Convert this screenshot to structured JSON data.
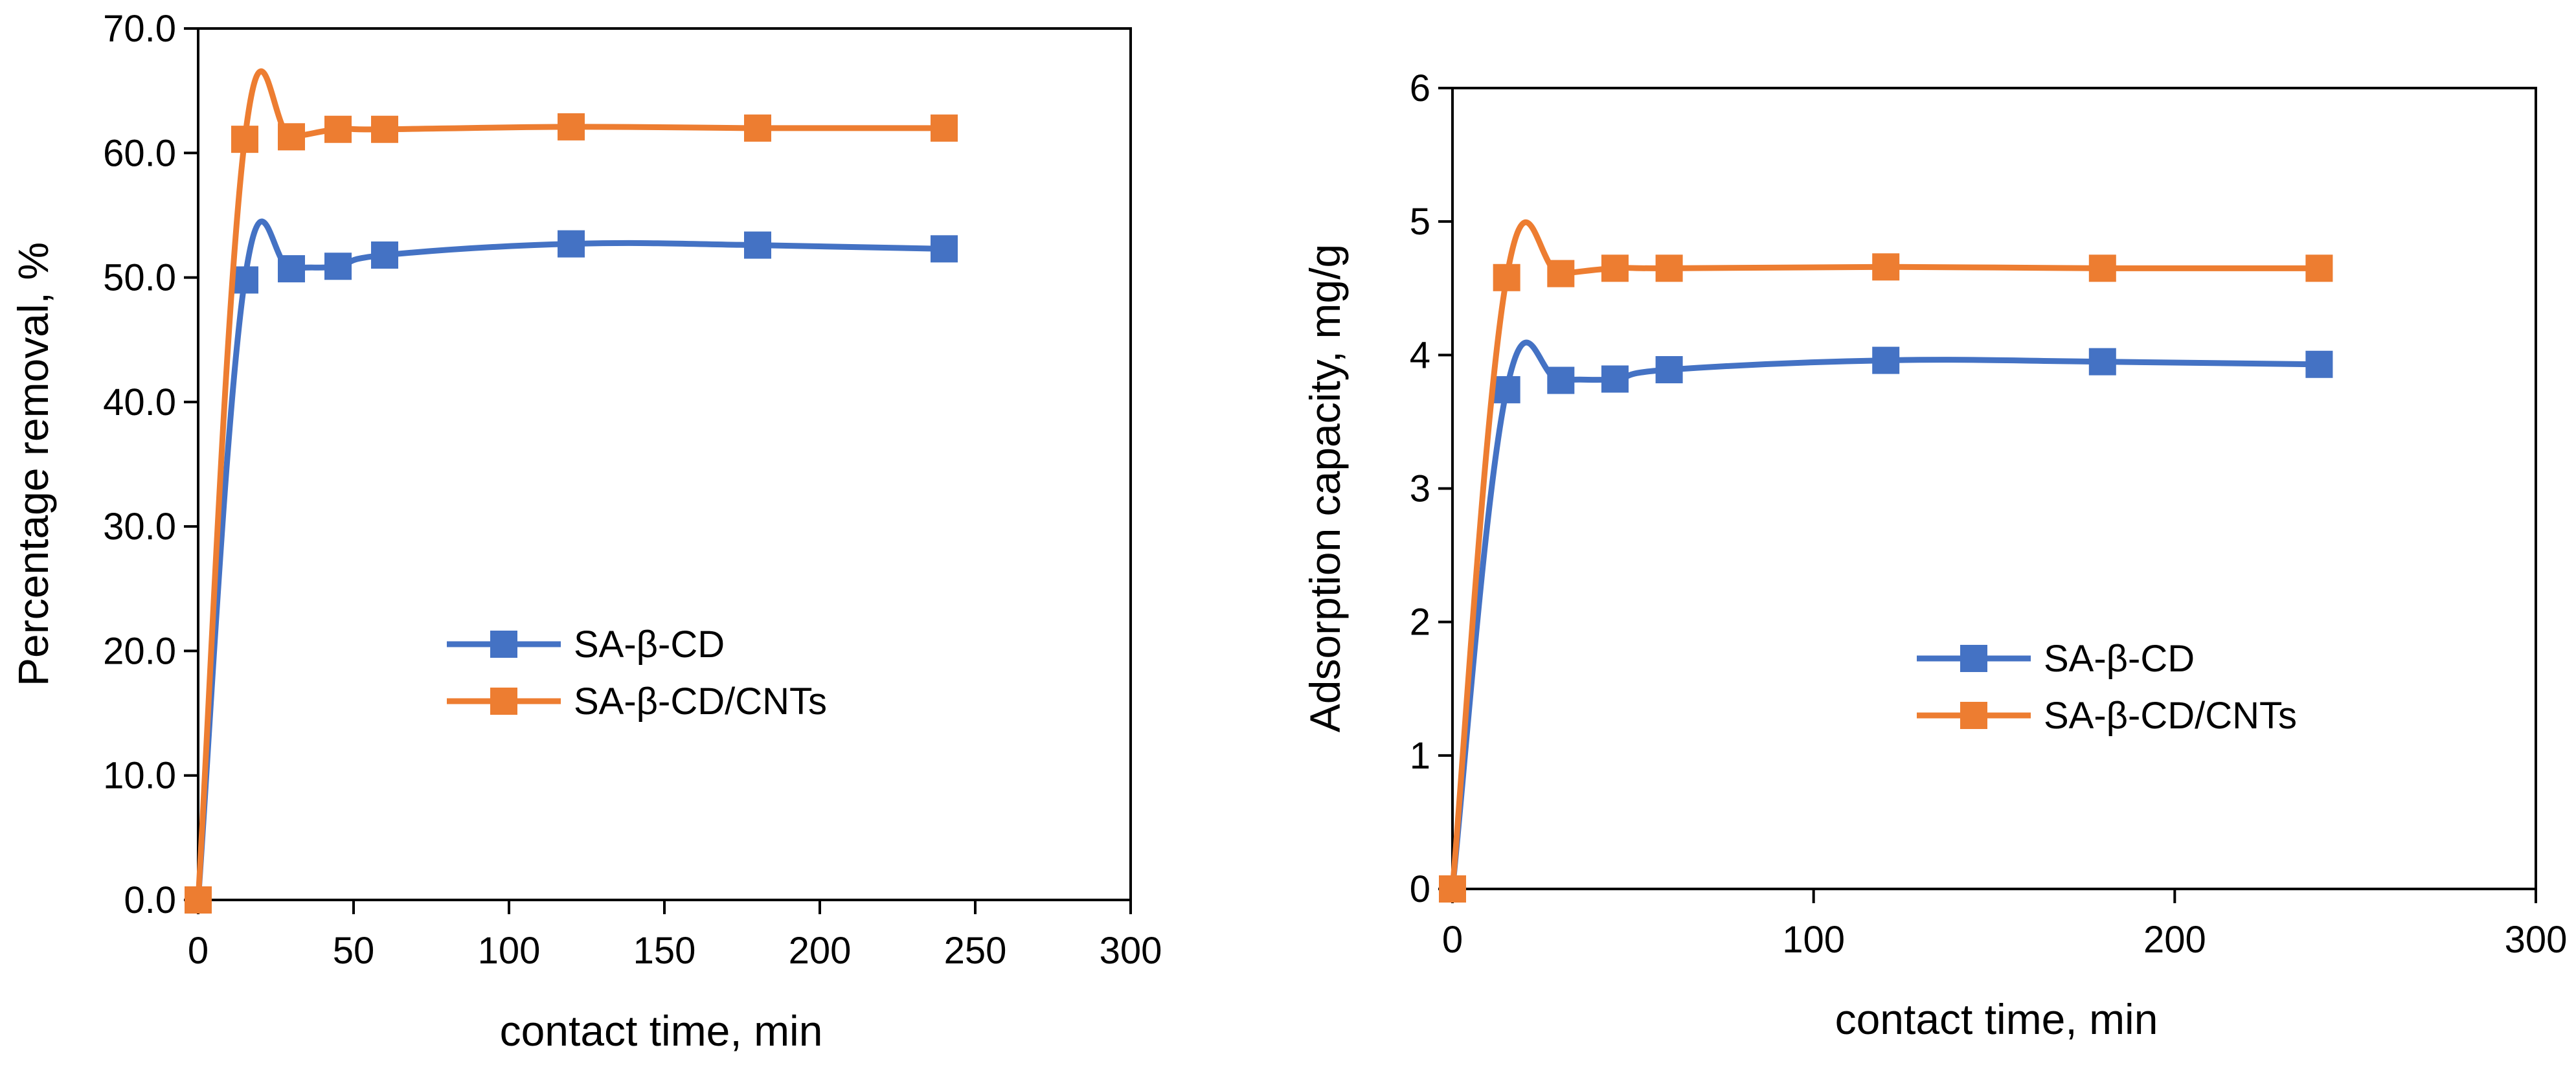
{
  "chart_data": [
    {
      "type": "line",
      "xlabel": "contact time, min",
      "ylabel": "Percentage removal, %",
      "xlim": [
        0,
        300
      ],
      "ylim": [
        0,
        70
      ],
      "xticks": [
        "0",
        "50",
        "100",
        "150",
        "200",
        "250",
        "300"
      ],
      "yticks": [
        "0.0",
        "10.0",
        "20.0",
        "30.0",
        "40.0",
        "50.0",
        "60.0",
        "70.0"
      ],
      "grid": false,
      "legend_position": "center",
      "series": [
        {
          "name": "SA-β-CD",
          "color": "#4472C4",
          "x": [
            0,
            15,
            30,
            45,
            60,
            120,
            180,
            240
          ],
          "y": [
            0,
            49.8,
            50.7,
            50.9,
            51.8,
            52.7,
            52.6,
            52.3
          ]
        },
        {
          "name": "SA-β-CD/CNTs",
          "color": "#ED7D31",
          "x": [
            0,
            15,
            30,
            45,
            60,
            120,
            180,
            240
          ],
          "y": [
            0,
            61.1,
            61.3,
            61.9,
            61.9,
            62.1,
            62.0,
            62.0
          ]
        }
      ]
    },
    {
      "type": "line",
      "xlabel": "contact time, min",
      "ylabel": "Adsorption capacity, mg/g",
      "xlim": [
        0,
        300
      ],
      "ylim": [
        0,
        6
      ],
      "xticks": [
        "0",
        "100",
        "200",
        "300"
      ],
      "yticks": [
        "0",
        "1",
        "2",
        "3",
        "4",
        "5",
        "6"
      ],
      "grid": false,
      "legend_position": "bottom-right",
      "series": [
        {
          "name": "SA-β-CD",
          "color": "#4472C4",
          "x": [
            0,
            15,
            30,
            45,
            60,
            120,
            180,
            240
          ],
          "y": [
            0,
            3.74,
            3.81,
            3.82,
            3.89,
            3.96,
            3.95,
            3.93
          ]
        },
        {
          "name": "SA-β-CD/CNTs",
          "color": "#ED7D31",
          "x": [
            0,
            15,
            30,
            45,
            60,
            120,
            180,
            240
          ],
          "y": [
            0,
            4.58,
            4.61,
            4.65,
            4.65,
            4.66,
            4.65,
            4.65
          ]
        }
      ]
    }
  ]
}
